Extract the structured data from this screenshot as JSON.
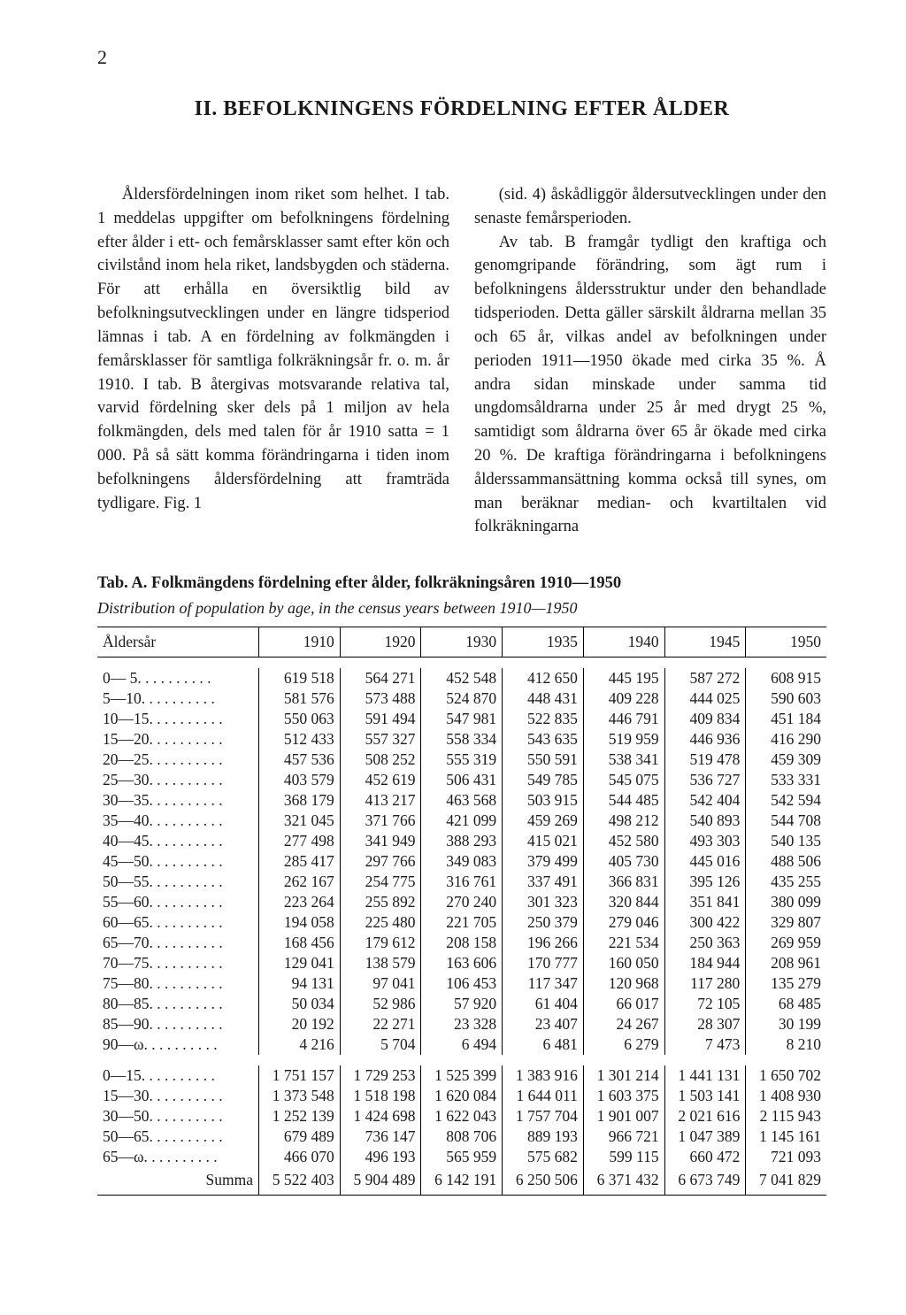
{
  "page_number": "2",
  "chapter_title": "II. BEFOLKNINGENS FÖRDELNING EFTER ÅLDER",
  "para_left": "Åldersfördelningen inom riket som helhet. I tab. 1 meddelas uppgifter om befolkningens fördelning efter ålder i ett- och femårsklasser samt efter kön och civilstånd inom hela riket, landsbygden och städerna. För att erhålla en översiktlig bild av befolkningsutvecklingen under en längre tidsperiod lämnas i tab. A en fördelning av folkmängden i femårsklasser för samtliga folkräkningsår fr. o. m. år 1910. I tab. B återgivas motsvarande relativa tal, varvid fördelning sker dels på 1 miljon av hela folkmängden, dels med talen för år 1910 satta = 1 000. På så sätt komma förändringarna i tiden inom befolkningens åldersfördelning att framträda tydligare. Fig. 1",
  "para_right": "(sid. 4) åskådliggör åldersutvecklingen under den senaste femårsperioden.",
  "para_right2": "Av tab. B framgår tydligt den kraftiga och genomgripande förändring, som ägt rum i befolkningens åldersstruktur under den behandlade tidsperioden. Detta gäller särskilt åldrarna mellan 35 och 65 år, vilkas andel av befolkningen under perioden 1911—1950 ökade med cirka 35 %. Å andra sidan minskade under samma tid ungdomsåldrarna under 25 år med drygt 25 %, samtidigt som åldrarna över 65 år ökade med cirka 20 %. De kraftiga förändringarna i befolkningens ålderssammansättning komma också till synes, om man beräknar median- och kvartiltalen vid folkräkningarna",
  "table_title_prefix": "Tab. A.",
  "table_title": "Folkmängdens fördelning efter ålder, folkräkningsåren 1910—1950",
  "table_subtitle": "Distribution of population by age, in the census years between 1910—1950",
  "columns": [
    "Åldersår",
    "1910",
    "1920",
    "1930",
    "1935",
    "1940",
    "1945",
    "1950"
  ],
  "rows1": [
    [
      "0— 5",
      "619 518",
      "564 271",
      "452 548",
      "412 650",
      "445 195",
      "587 272",
      "608 915"
    ],
    [
      "5—10",
      "581 576",
      "573 488",
      "524 870",
      "448 431",
      "409 228",
      "444 025",
      "590 603"
    ],
    [
      "10—15",
      "550 063",
      "591 494",
      "547 981",
      "522 835",
      "446 791",
      "409 834",
      "451 184"
    ],
    [
      "15—20",
      "512 433",
      "557 327",
      "558 334",
      "543 635",
      "519 959",
      "446 936",
      "416 290"
    ],
    [
      "20—25",
      "457 536",
      "508 252",
      "555 319",
      "550 591",
      "538 341",
      "519 478",
      "459 309"
    ],
    [
      "25—30",
      "403 579",
      "452 619",
      "506 431",
      "549 785",
      "545 075",
      "536 727",
      "533 331"
    ],
    [
      "30—35",
      "368 179",
      "413 217",
      "463 568",
      "503 915",
      "544 485",
      "542 404",
      "542 594"
    ],
    [
      "35—40",
      "321 045",
      "371 766",
      "421 099",
      "459 269",
      "498 212",
      "540 893",
      "544 708"
    ],
    [
      "40—45",
      "277 498",
      "341 949",
      "388 293",
      "415 021",
      "452 580",
      "493 303",
      "540 135"
    ],
    [
      "45—50",
      "285 417",
      "297 766",
      "349 083",
      "379 499",
      "405 730",
      "445 016",
      "488 506"
    ],
    [
      "50—55",
      "262 167",
      "254 775",
      "316 761",
      "337 491",
      "366 831",
      "395 126",
      "435 255"
    ],
    [
      "55—60",
      "223 264",
      "255 892",
      "270 240",
      "301 323",
      "320 844",
      "351 841",
      "380 099"
    ],
    [
      "60—65",
      "194 058",
      "225 480",
      "221 705",
      "250 379",
      "279 046",
      "300 422",
      "329 807"
    ],
    [
      "65—70",
      "168 456",
      "179 612",
      "208 158",
      "196 266",
      "221 534",
      "250 363",
      "269 959"
    ],
    [
      "70—75",
      "129 041",
      "138 579",
      "163 606",
      "170 777",
      "160 050",
      "184 944",
      "208 961"
    ],
    [
      "75—80",
      "94 131",
      "97 041",
      "106 453",
      "117 347",
      "120 968",
      "117 280",
      "135 279"
    ],
    [
      "80—85",
      "50 034",
      "52 986",
      "57 920",
      "61 404",
      "66 017",
      "72 105",
      "68 485"
    ],
    [
      "85—90",
      "20 192",
      "22 271",
      "23 328",
      "23 407",
      "24 267",
      "28 307",
      "30 199"
    ],
    [
      "90—ω",
      "4 216",
      "5 704",
      "6 494",
      "6 481",
      "6 279",
      "7 473",
      "8 210"
    ]
  ],
  "rows2": [
    [
      "0—15",
      "1 751 157",
      "1 729 253",
      "1 525 399",
      "1 383 916",
      "1 301 214",
      "1 441 131",
      "1 650 702"
    ],
    [
      "15—30",
      "1 373 548",
      "1 518 198",
      "1 620 084",
      "1 644 011",
      "1 603 375",
      "1 503 141",
      "1 408 930"
    ],
    [
      "30—50",
      "1 252 139",
      "1 424 698",
      "1 622 043",
      "1 757 704",
      "1 901 007",
      "2 021 616",
      "2 115 943"
    ],
    [
      "50—65",
      "679 489",
      "736 147",
      "808 706",
      "889 193",
      "966 721",
      "1 047 389",
      "1 145 161"
    ],
    [
      "65—ω",
      "466 070",
      "496 193",
      "565 959",
      "575 682",
      "599 115",
      "660 472",
      "721 093"
    ]
  ],
  "sum_label": "Summa",
  "sum_row": [
    "5 522 403",
    "5 904 489",
    "6 142 191",
    "6 250 506",
    "6 371 432",
    "6 673 749",
    "7 041 829"
  ]
}
